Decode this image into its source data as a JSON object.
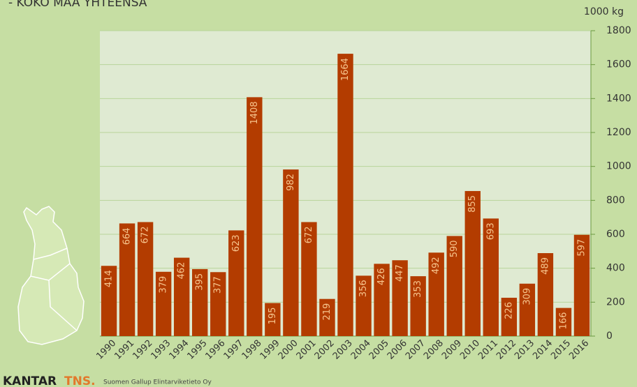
{
  "chart_data": {
    "type": "bar",
    "title": "- KOKO MAA YHTEENSÄ",
    "y_axis_label": "1000 kg",
    "categories": [
      "1990",
      "1991",
      "1992",
      "1993",
      "1994",
      "1995",
      "1996",
      "1997",
      "1998",
      "1999",
      "2000",
      "2001",
      "2002",
      "2003",
      "2004",
      "2005",
      "2006",
      "2007",
      "2008",
      "2009",
      "2010",
      "2011",
      "2012",
      "2013",
      "2014",
      "2015",
      "2016"
    ],
    "values": [
      414,
      664,
      672,
      379,
      462,
      395,
      377,
      623,
      1408,
      195,
      982,
      672,
      219,
      1664,
      356,
      426,
      447,
      353,
      492,
      590,
      855,
      693,
      226,
      309,
      489,
      166,
      597
    ],
    "color": "#b33c00",
    "label_color": "#f7c58e",
    "ylim": [
      0,
      1800
    ],
    "yticks": [
      0,
      200,
      400,
      600,
      800,
      1000,
      1200,
      1400,
      1600,
      1800
    ],
    "grid": true,
    "y_axis_side": "right"
  },
  "footer": {
    "brand": "KANTAR",
    "brand_suffix": "TNS.",
    "source": "Suomen Gallup Elintarviketieto Oy"
  }
}
